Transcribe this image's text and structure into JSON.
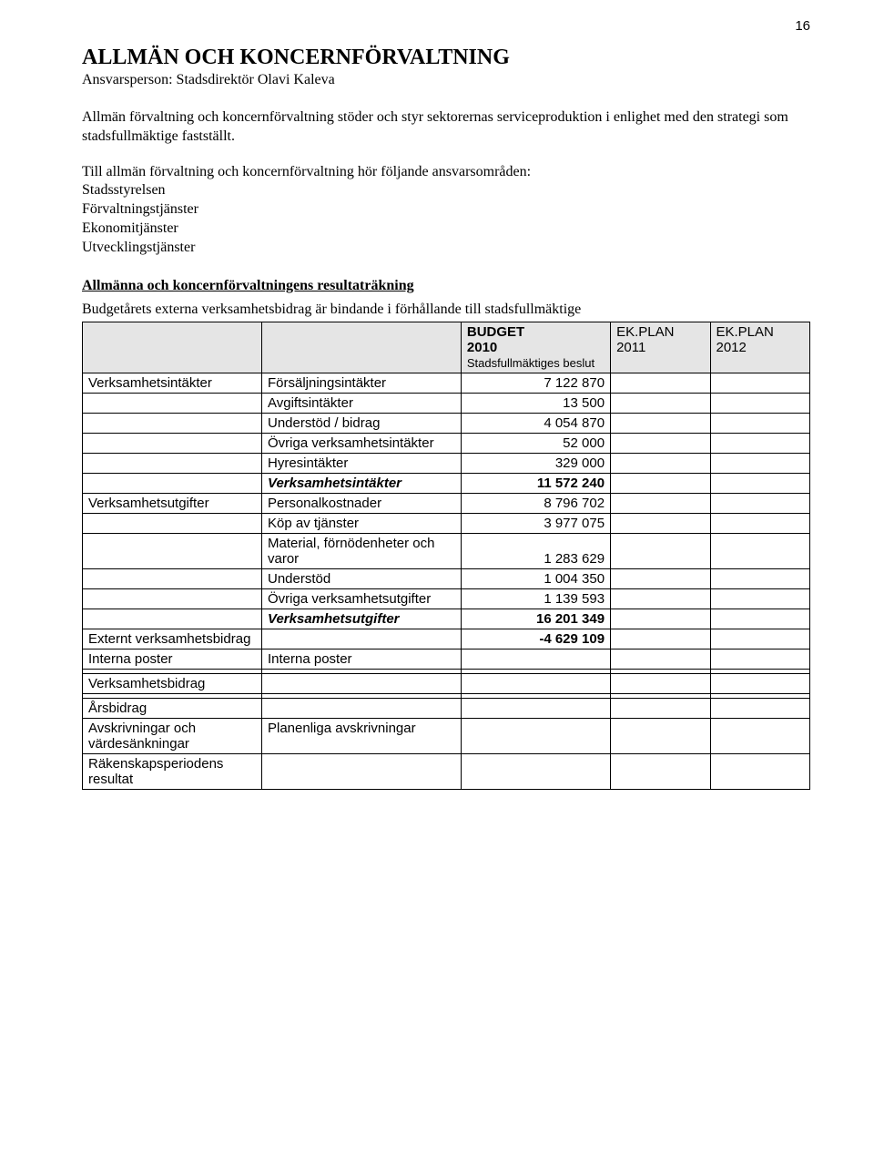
{
  "page_number": "16",
  "title": "ALLMÄN OCH KONCERNFÖRVALTNING",
  "subtitle": "Ansvarsperson: Stadsdirektör Olavi Kaleva",
  "intro_para": "Allmän förvaltning och koncernförvaltning stöder och styr sektorernas serviceproduktion i enlighet med den strategi som stadsfullmäktige fastställt.",
  "list_para_lead": "Till allmän förvaltning och koncernförvaltning hör följande ansvarsområden:",
  "list_items": [
    "Stadsstyrelsen",
    "Förvaltningstjänster",
    "Ekonomitjänster",
    "Utvecklingstjänster"
  ],
  "section_heading": "Allmänna och koncernförvaltningens resultaträkning",
  "binding_text": "Budgetårets externa verksamhetsbidrag är bindande i förhållande till stadsfullmäktige",
  "columns": {
    "budget_label": "BUDGET",
    "budget_year": "2010",
    "budget_sub": "Stadsfullmäktiges beslut",
    "plan1_label": "EK.PLAN",
    "plan1_year": "2011",
    "plan2_label": "EK.PLAN",
    "plan2_year": "2012"
  },
  "rows": {
    "r1_a": "Verksamhetsintäkter",
    "r1_b": "Försäljningsintäkter",
    "r1_c": "7 122 870",
    "r2_b": "Avgiftsintäkter",
    "r2_c": "13 500",
    "r3_b": "Understöd / bidrag",
    "r3_c": "4 054 870",
    "r4_b": "Övriga verksamhetsintäkter",
    "r4_c": "52 000",
    "r5_b": "Hyresintäkter",
    "r5_c": "329 000",
    "r6_b": "Verksamhetsintäkter",
    "r6_c": "11 572 240",
    "r7_a": "Verksamhetsutgifter",
    "r7_b": "Personalkostnader",
    "r7_c": "8 796 702",
    "r8_b": "Köp av tjänster",
    "r8_c": "3 977 075",
    "r9_b": "Material, förnödenheter och varor",
    "r9_c": "1 283 629",
    "r10_b": "Understöd",
    "r10_c": "1 004 350",
    "r11_b": "Övriga verksamhetsutgifter",
    "r11_c": "1 139 593",
    "r12_b": "Verksamhetsutgifter",
    "r12_c": "16 201 349",
    "r13_a": "Externt verksamhetsbidrag",
    "r13_c": "-4 629 109",
    "r14_a": "Interna poster",
    "r14_b": "Interna poster",
    "r15_a": "Verksamhetsbidrag",
    "r16_a": "Årsbidrag",
    "r17_a": "Avskrivningar och värdesänkningar",
    "r17_b": "Planenliga avskrivningar",
    "r18_a": "Räkenskapsperiodens resultat"
  }
}
